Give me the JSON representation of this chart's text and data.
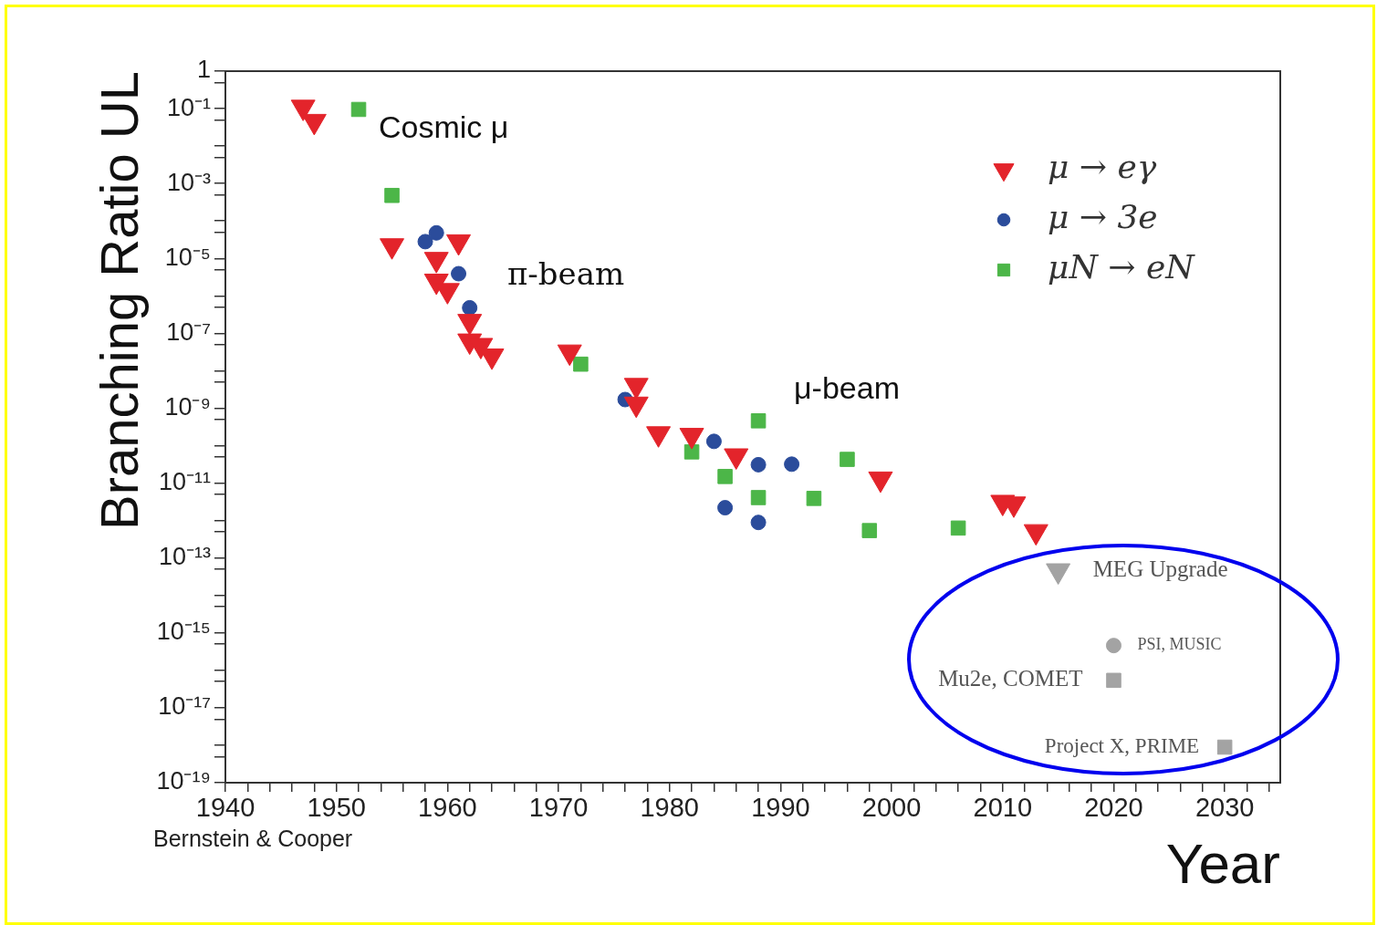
{
  "chart_data": {
    "type": "scatter",
    "xlabel": "Year",
    "ylabel": "Branching Ratio UL",
    "log": "y",
    "legend": "top right",
    "xlim": [
      1940,
      2035
    ],
    "ylim": [
      1e-19,
      1
    ],
    "xticks": [
      1940,
      {
        "value": 1942,
        "label": null
      },
      {
        "value": 1944,
        "label": null
      },
      {
        "value": 1946,
        "label": null
      },
      {
        "value": 1948,
        "label": null
      },
      1950,
      {
        "value": 1952,
        "label": null
      },
      {
        "value": 1954,
        "label": null
      },
      {
        "value": 1956,
        "label": null
      },
      {
        "value": 1958,
        "label": null
      },
      1960,
      {
        "value": 1962,
        "label": null
      },
      {
        "value": 1964,
        "label": null
      },
      {
        "value": 1966,
        "label": null
      },
      {
        "value": 1968,
        "label": null
      },
      1970,
      {
        "value": 1972,
        "label": null
      },
      {
        "value": 1974,
        "label": null
      },
      {
        "value": 1976,
        "label": null
      },
      {
        "value": 1978,
        "label": null
      },
      1980,
      {
        "value": 1982,
        "label": null
      },
      {
        "value": 1984,
        "label": null
      },
      {
        "value": 1986,
        "label": null
      },
      {
        "value": 1988,
        "label": null
      },
      1990,
      {
        "value": 1992,
        "label": null
      },
      {
        "value": 1994,
        "label": null
      },
      {
        "value": 1996,
        "label": null
      },
      {
        "value": 1998,
        "label": null
      },
      2000,
      {
        "value": 2002,
        "label": null
      },
      {
        "value": 2004,
        "label": null
      },
      {
        "value": 2006,
        "label": null
      },
      {
        "value": 2008,
        "label": null
      },
      2010,
      {
        "value": 2012,
        "label": null
      },
      {
        "value": 2014,
        "label": null
      },
      {
        "value": 2016,
        "label": null
      },
      {
        "value": 2018,
        "label": null
      },
      2020,
      {
        "value": 2022,
        "label": null
      },
      {
        "value": 2024,
        "label": null
      },
      {
        "value": 2026,
        "label": null
      },
      {
        "value": 2028,
        "label": null
      },
      2030,
      {
        "value": 2032,
        "label": null
      },
      {
        "value": 2034,
        "label": null
      }
    ],
    "yticks": [
      1,
      {
        "value": 0.5,
        "label": null
      },
      {
        "value": 0.1,
        "label": "10⁻¹"
      },
      {
        "value": 0.05,
        "label": null
      },
      {
        "value": 0.01,
        "label": null
      },
      {
        "value": 0.005,
        "label": null
      },
      {
        "value": 0.001,
        "label": "10⁻³"
      },
      {
        "value": 0.0005,
        "label": null
      },
      {
        "value": 0.0001,
        "label": null
      },
      {
        "value": 5e-05,
        "label": null
      },
      {
        "value": 1e-05,
        "label": "10⁻⁵"
      },
      {
        "value": 5e-06,
        "label": null
      },
      {
        "value": 1e-06,
        "label": null
      },
      {
        "value": 5e-07,
        "label": null
      },
      {
        "value": 1e-07,
        "label": "10⁻⁷"
      },
      {
        "value": 5e-08,
        "label": null
      },
      {
        "value": 1e-08,
        "label": null
      },
      {
        "value": 5e-09,
        "label": null
      },
      {
        "value": 1e-09,
        "label": "10⁻⁹"
      },
      {
        "value": 5e-10,
        "label": null
      },
      {
        "value": 1e-10,
        "label": null
      },
      {
        "value": 5e-11,
        "label": null
      },
      {
        "value": 1e-11,
        "label": "10⁻¹¹"
      },
      {
        "value": 5e-12,
        "label": null
      },
      {
        "value": 1e-12,
        "label": null
      },
      {
        "value": 5e-13,
        "label": null
      },
      {
        "value": 1e-13,
        "label": "10⁻¹³"
      },
      {
        "value": 5e-14,
        "label": null
      },
      {
        "value": 1e-14,
        "label": null
      },
      {
        "value": 5e-15,
        "label": null
      },
      {
        "value": 1e-15,
        "label": "10⁻¹⁵"
      },
      {
        "value": 5e-16,
        "label": null
      },
      {
        "value": 1e-16,
        "label": null
      },
      {
        "value": 5e-17,
        "label": null
      },
      {
        "value": 1e-17,
        "label": "10⁻¹⁷"
      },
      {
        "value": 5e-18,
        "label": null
      },
      {
        "value": 1e-18,
        "label": null
      },
      {
        "value": 5e-19,
        "label": null
      },
      {
        "value": 1e-19,
        "label": "10⁻¹⁹"
      }
    ],
    "series": [
      {
        "name": "μ → eγ",
        "color": "#e3242b",
        "marker": "triangle",
        "x": [
          1947,
          1948,
          1955,
          1959,
          1961,
          1959,
          1960,
          1962,
          1962,
          1963,
          1964,
          1971,
          1977,
          1977,
          1979,
          1982,
          1986,
          1999,
          2010,
          2011,
          2013
        ],
        "values": [
          0.11,
          0.046,
          2.2e-05,
          9.5e-06,
          2.8e-05,
          2.5e-06,
          1.4e-06,
          2.1e-07,
          6.3e-08,
          4.8e-08,
          2.5e-08,
          3.2e-08,
          4.1e-09,
          1.3e-09,
          2.1e-10,
          1.9e-10,
          5.4e-11,
          1.3e-11,
          3.1e-12,
          2.8e-12,
          5.1e-13
        ]
      },
      {
        "name": "μ → 3e",
        "color": "#2b4c9b",
        "marker": "circle",
        "x": [
          1958,
          1959,
          1961,
          1962,
          1976,
          1984,
          1988,
          1991,
          1985,
          1988
        ],
        "values": [
          2.8e-05,
          4.8e-05,
          3.9e-06,
          4.8e-07,
          1.7e-09,
          1.3e-10,
          3.1e-11,
          3.2e-11,
          2.2e-12,
          8.9e-13
        ]
      },
      {
        "name": "μN → eN",
        "color": "#4cb648",
        "marker": "square",
        "x": [
          1952,
          1955,
          1972,
          1982,
          1985,
          1988,
          1988,
          1993,
          1996,
          1998,
          2006
        ],
        "values": [
          0.095,
          0.00048,
          1.5e-08,
          6.8e-11,
          1.5e-11,
          4.6e-10,
          4.1e-12,
          3.9e-12,
          4.3e-11,
          5.4e-13,
          6.3e-13
        ]
      },
      {
        "color": "#a3a3a3",
        "marker": "triangle",
        "x": [
          2015
        ],
        "values": [
          4.6e-14
        ]
      },
      {
        "color": "#a3a3a3",
        "marker": "circle",
        "x": [
          2020
        ],
        "values": [
          4.6e-16
        ]
      },
      {
        "color": "#a3a3a3",
        "marker": "square",
        "x": [
          2020,
          2030
        ],
        "values": [
          5.4e-17,
          8.9e-19
        ]
      }
    ],
    "annotations": [
      "Cosmic μ",
      "π-beam",
      "μ-beam",
      {
        "text": "MEG Upgrade",
        "x": 2015,
        "y": 4.6e-14
      },
      {
        "text": "PSI, MUSIC",
        "x": 2020,
        "y": 4.6e-16
      },
      {
        "text": "Mu2e, COMET",
        "x": 2020,
        "y": 5.4e-17
      },
      {
        "text": "Project X, PRIME",
        "x": 2030,
        "y": 8.9e-19
      },
      "Bernstein & Cooper"
    ]
  }
}
